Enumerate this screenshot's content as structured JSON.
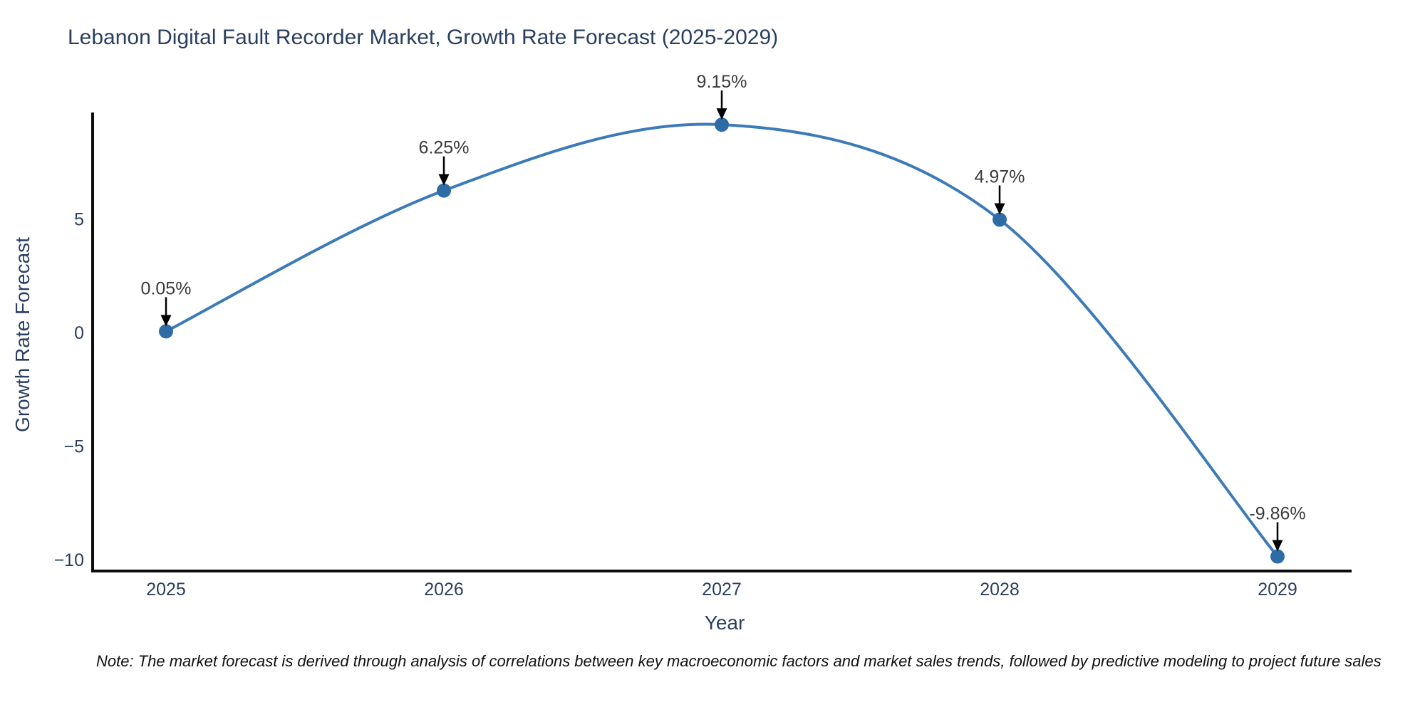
{
  "chart_data": {
    "type": "line",
    "title": "Lebanon Digital Fault Recorder Market, Growth Rate Forecast (2025-2029)",
    "xlabel": "Year",
    "ylabel": "Growth Rate Forecast",
    "x": [
      2025,
      2026,
      2027,
      2028,
      2029
    ],
    "values": [
      0.05,
      6.25,
      9.15,
      4.97,
      -9.86
    ],
    "point_labels": [
      "0.05%",
      "6.25%",
      "9.15%",
      "4.97%",
      "-9.86%"
    ],
    "x_tick_labels": [
      "2025",
      "2026",
      "2027",
      "2028",
      "2029"
    ],
    "y_ticks": [
      {
        "value": 5,
        "label": "5"
      },
      {
        "value": 0,
        "label": "0"
      },
      {
        "value": -5,
        "label": "−5"
      },
      {
        "value": -10,
        "label": "−10"
      }
    ],
    "ylim": [
      -10.45,
      9.7
    ],
    "xlim": [
      2024.74,
      2029.27
    ],
    "grid": false,
    "legend_position": "none",
    "line_shape": "spline",
    "colors": {
      "line": "#3d7ab8",
      "marker": "#2e6ca6",
      "axis": "#0d0d0d",
      "tick_text": "#2a3f5f",
      "annotation_text": "#3b3b3b",
      "annotation_arrow": "#000000"
    },
    "note": "Note: The market forecast is derived through analysis of correlations between key macroeconomic factors and market sales trends, followed by predictive modeling to project future sales"
  }
}
